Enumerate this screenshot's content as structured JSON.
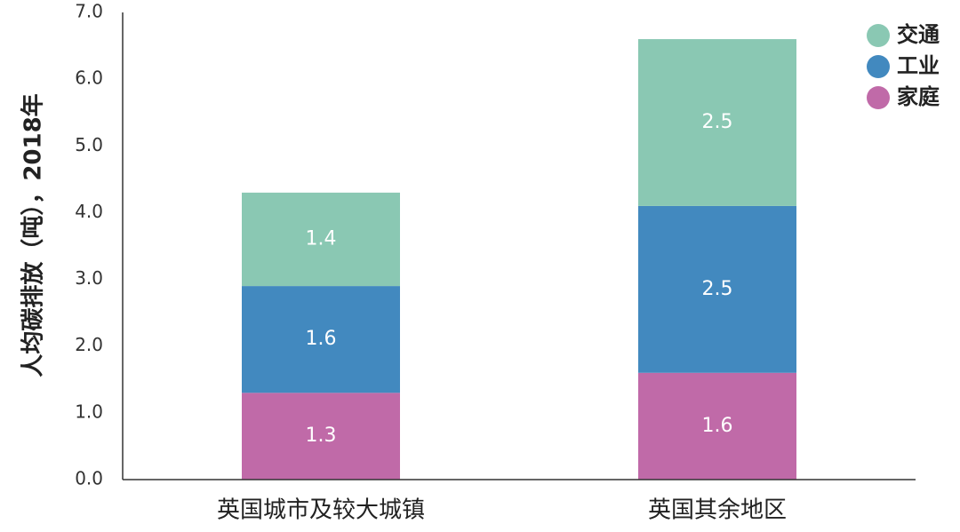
{
  "chart_data": {
    "type": "bar",
    "stacked": true,
    "categories": [
      "英国城市及较大城镇",
      "英国其余地区"
    ],
    "series": [
      {
        "name": "家庭",
        "values": [
          1.3,
          1.6
        ],
        "color": "#c06aa8"
      },
      {
        "name": "工业",
        "values": [
          1.6,
          2.5
        ],
        "color": "#4289bf"
      },
      {
        "name": "交通",
        "values": [
          1.4,
          2.5
        ],
        "color": "#8ac8b3"
      }
    ],
    "legend_order": [
      "交通",
      "工业",
      "家庭"
    ],
    "xlabel": "",
    "ylabel": "人均碳排放（吨），2018年",
    "ylim": [
      0,
      7
    ],
    "yticks": [
      "0.0",
      "1.0",
      "2.0",
      "3.0",
      "4.0",
      "5.0",
      "6.0",
      "7.0"
    ],
    "grid": false,
    "legend_position": "top-right",
    "axis_color": "#333333"
  }
}
